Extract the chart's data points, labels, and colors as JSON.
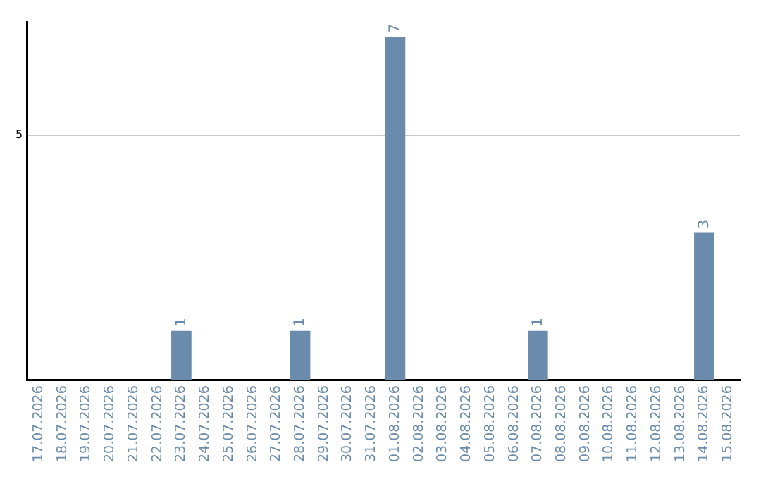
{
  "chart_data": {
    "type": "bar",
    "categories": [
      "17.07.2026",
      "18.07.2026",
      "19.07.2026",
      "20.07.2026",
      "21.07.2026",
      "22.07.2026",
      "23.07.2026",
      "24.07.2026",
      "25.07.2026",
      "26.07.2026",
      "27.07.2026",
      "28.07.2026",
      "29.07.2026",
      "30.07.2026",
      "31.07.2026",
      "01.08.2026",
      "02.08.2026",
      "03.08.2026",
      "04.08.2026",
      "05.08.2026",
      "06.08.2026",
      "07.08.2026",
      "08.08.2026",
      "09.08.2026",
      "10.08.2026",
      "11.08.2026",
      "12.08.2026",
      "13.08.2026",
      "14.08.2026",
      "15.08.2026"
    ],
    "values": [
      0,
      0,
      0,
      0,
      0,
      0,
      1,
      0,
      0,
      0,
      0,
      1,
      0,
      0,
      0,
      7,
      0,
      0,
      0,
      0,
      0,
      1,
      0,
      0,
      0,
      0,
      0,
      0,
      3,
      0
    ],
    "color": "#6a8bab",
    "value_labels": [
      null,
      null,
      null,
      null,
      null,
      null,
      "1",
      null,
      null,
      null,
      null,
      "1",
      null,
      null,
      null,
      "7",
      null,
      null,
      null,
      null,
      null,
      "1",
      null,
      null,
      null,
      null,
      null,
      null,
      "3",
      null
    ],
    "ylim": [
      0,
      7.3
    ],
    "yticks": [
      5
    ],
    "grid": "y",
    "legend": false
  }
}
